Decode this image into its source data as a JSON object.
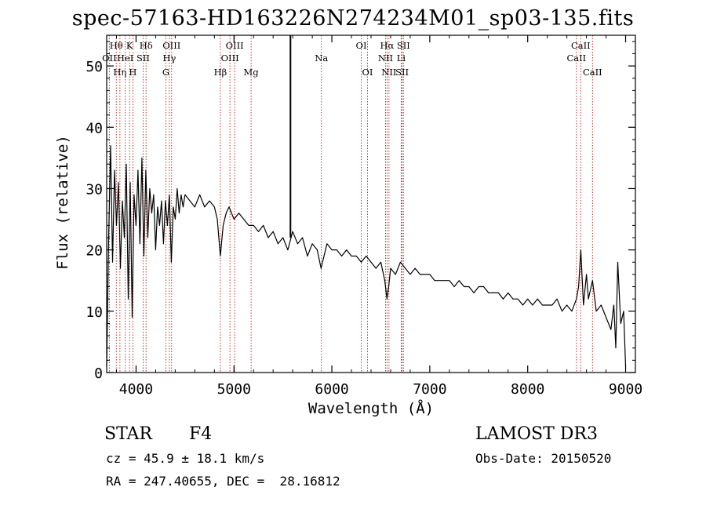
{
  "header": {
    "title": "spec-57163-HD163226N274234M01_sp03-135.fits"
  },
  "info": {
    "class_label": "STAR",
    "subclass": "F4",
    "survey": "LAMOST DR3",
    "velocity": "cz = 45.9 ± 18.1 km/s",
    "obs_date": "Obs-Date: 20150520",
    "coords": "RA = 247.40655, DEC =  28.16812"
  },
  "colors": {
    "line": "#000000",
    "marker": "#b22222"
  },
  "chart_data": {
    "type": "line",
    "title": "spec-57163-HD163226N274234M01_sp03-135.fits",
    "xlabel": "Wavelength (Å)",
    "ylabel": "Flux (relative)",
    "xlim": [
      3700,
      9100
    ],
    "ylim": [
      0,
      55
    ],
    "xticks": [
      4000,
      5000,
      6000,
      7000,
      8000,
      9000
    ],
    "yticks": [
      0,
      10,
      20,
      30,
      40,
      50
    ],
    "marker_x": 5577,
    "spectrum": {
      "x": [
        3700,
        3720,
        3740,
        3760,
        3780,
        3800,
        3820,
        3840,
        3860,
        3880,
        3900,
        3920,
        3940,
        3960,
        3980,
        4000,
        4020,
        4040,
        4060,
        4080,
        4100,
        4120,
        4140,
        4160,
        4180,
        4200,
        4220,
        4240,
        4260,
        4280,
        4300,
        4320,
        4340,
        4360,
        4380,
        4400,
        4420,
        4440,
        4460,
        4480,
        4500,
        4550,
        4600,
        4650,
        4700,
        4750,
        4800,
        4830,
        4861,
        4890,
        4920,
        4950,
        5000,
        5050,
        5100,
        5150,
        5200,
        5250,
        5300,
        5350,
        5400,
        5450,
        5500,
        5550,
        5600,
        5650,
        5700,
        5750,
        5800,
        5850,
        5890,
        5950,
        6000,
        6050,
        6100,
        6150,
        6200,
        6250,
        6300,
        6350,
        6400,
        6450,
        6500,
        6540,
        6563,
        6580,
        6600,
        6650,
        6700,
        6750,
        6800,
        6850,
        6900,
        6950,
        7000,
        7050,
        7100,
        7150,
        7200,
        7250,
        7300,
        7350,
        7400,
        7450,
        7500,
        7550,
        7600,
        7650,
        7700,
        7750,
        7800,
        7850,
        7900,
        7950,
        8000,
        8050,
        8100,
        8150,
        8200,
        8250,
        8300,
        8350,
        8400,
        8450,
        8498,
        8520,
        8542,
        8570,
        8600,
        8620,
        8662,
        8700,
        8750,
        8800,
        8850,
        8880,
        8900,
        8920,
        8950,
        8980,
        9000
      ],
      "y": [
        1,
        22,
        37,
        18,
        33,
        24,
        31,
        17,
        28,
        22,
        34,
        12,
        31,
        9,
        29,
        24,
        33,
        21,
        35,
        19,
        33,
        22,
        30,
        26,
        29,
        20,
        27,
        24,
        28,
        21,
        28,
        24,
        29,
        18,
        27,
        25,
        30,
        26,
        29,
        27,
        29,
        28,
        27,
        29,
        27,
        28,
        27,
        25,
        19,
        24,
        26,
        27,
        25,
        26,
        25,
        24,
        24,
        23,
        24,
        22,
        23,
        21,
        22,
        20,
        23,
        21,
        22,
        19,
        21,
        20,
        17,
        21,
        20,
        20,
        19,
        20,
        19,
        19,
        18,
        19,
        18,
        17,
        18,
        15,
        12,
        14,
        17,
        16,
        18,
        17,
        16,
        17,
        16,
        16,
        16,
        15,
        15,
        15,
        15,
        14,
        15,
        14,
        14,
        13,
        14,
        14,
        13,
        13,
        13,
        12,
        13,
        12,
        12,
        11,
        12,
        11,
        12,
        11,
        11,
        11,
        12,
        10,
        11,
        10,
        12,
        14,
        20,
        11,
        16,
        12,
        15,
        10,
        11,
        9,
        7,
        11,
        4,
        18,
        8,
        10,
        1
      ]
    },
    "lines": [
      {
        "name": "Hθ",
        "x": 3798,
        "row": 0
      },
      {
        "name": "OII",
        "x": 3727,
        "row": 1
      },
      {
        "name": "Hη",
        "x": 3835,
        "row": 2
      },
      {
        "name": "K",
        "x": 3934,
        "row": 0
      },
      {
        "name": "HeI",
        "x": 3889,
        "row": 1
      },
      {
        "name": "H",
        "x": 3968,
        "row": 2
      },
      {
        "name": "Hδ",
        "x": 4102,
        "row": 0
      },
      {
        "name": "SII",
        "x": 4072,
        "row": 1
      },
      {
        "name": "OIII",
        "x": 4363,
        "row": 0
      },
      {
        "name": "Hγ",
        "x": 4340,
        "row": 1
      },
      {
        "name": "G",
        "x": 4305,
        "row": 2
      },
      {
        "name": "OIII",
        "x": 5007,
        "row": 0
      },
      {
        "name": "OIII",
        "x": 4959,
        "row": 1
      },
      {
        "name": "Hβ",
        "x": 4861,
        "row": 2
      },
      {
        "name": "Mg",
        "x": 5175,
        "row": 2
      },
      {
        "name": "Na",
        "x": 5893,
        "row": 1
      },
      {
        "name": "OI",
        "x": 6300,
        "row": 0
      },
      {
        "name": "OI",
        "x": 6364,
        "row": 2
      },
      {
        "name": "Hα",
        "x": 6563,
        "row": 0
      },
      {
        "name": "NII",
        "x": 6548,
        "row": 1
      },
      {
        "name": "NII",
        "x": 6583,
        "row": 2
      },
      {
        "name": "SII",
        "x": 6731,
        "row": 0
      },
      {
        "name": "Li",
        "x": 6708,
        "row": 1
      },
      {
        "name": "SII",
        "x": 6717,
        "row": 2
      },
      {
        "name": "CaII",
        "x": 8542,
        "row": 0
      },
      {
        "name": "CaII",
        "x": 8498,
        "row": 1
      },
      {
        "name": "CaII",
        "x": 8662,
        "row": 2
      }
    ]
  }
}
